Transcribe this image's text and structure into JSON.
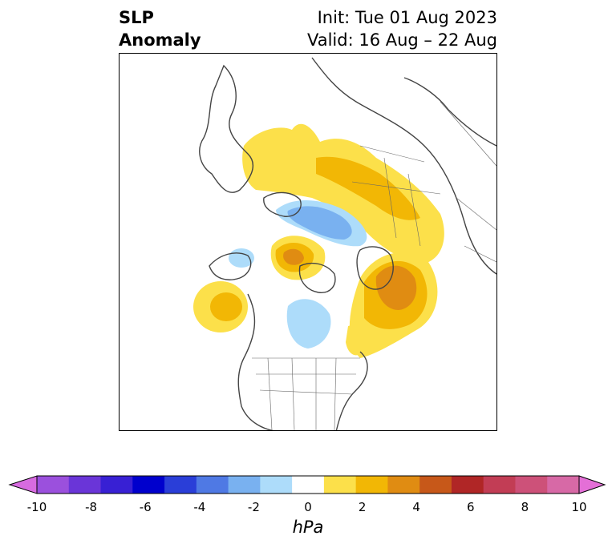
{
  "title": {
    "left_line1": "SLP",
    "left_line2": "Anomaly",
    "right_line1": "Init: Tue 01 Aug 2023",
    "right_line2": "Valid: 16 Aug – 22 Aug"
  },
  "colorbar": {
    "unit": "hPa",
    "ticks": [
      "-10",
      "-8",
      "-6",
      "-4",
      "-2",
      "0",
      "2",
      "4",
      "6",
      "8",
      "10"
    ],
    "colors": [
      "#d76be0",
      "#9b50dd",
      "#6a35d8",
      "#3820d4",
      "#0000cd",
      "#2a3ed8",
      "#4f79e4",
      "#79b1f0",
      "#addcfa",
      "#ffffff",
      "#fce04a",
      "#f2b705",
      "#e08c12",
      "#c75819",
      "#b02626",
      "#c23d55",
      "#cd5179",
      "#d769a6",
      "#e46fd7"
    ],
    "extend_low_color": "#d76be0",
    "extend_high_color": "#e46fd7"
  },
  "map": {
    "projection": "polar stereographic, North Pole centered",
    "anomaly_colors": {
      "pos_1": "#fce04a",
      "pos_2": "#f2b705",
      "pos_3": "#e08c12",
      "neg_1": "#addcfa",
      "neg_2": "#79b1f0"
    }
  }
}
